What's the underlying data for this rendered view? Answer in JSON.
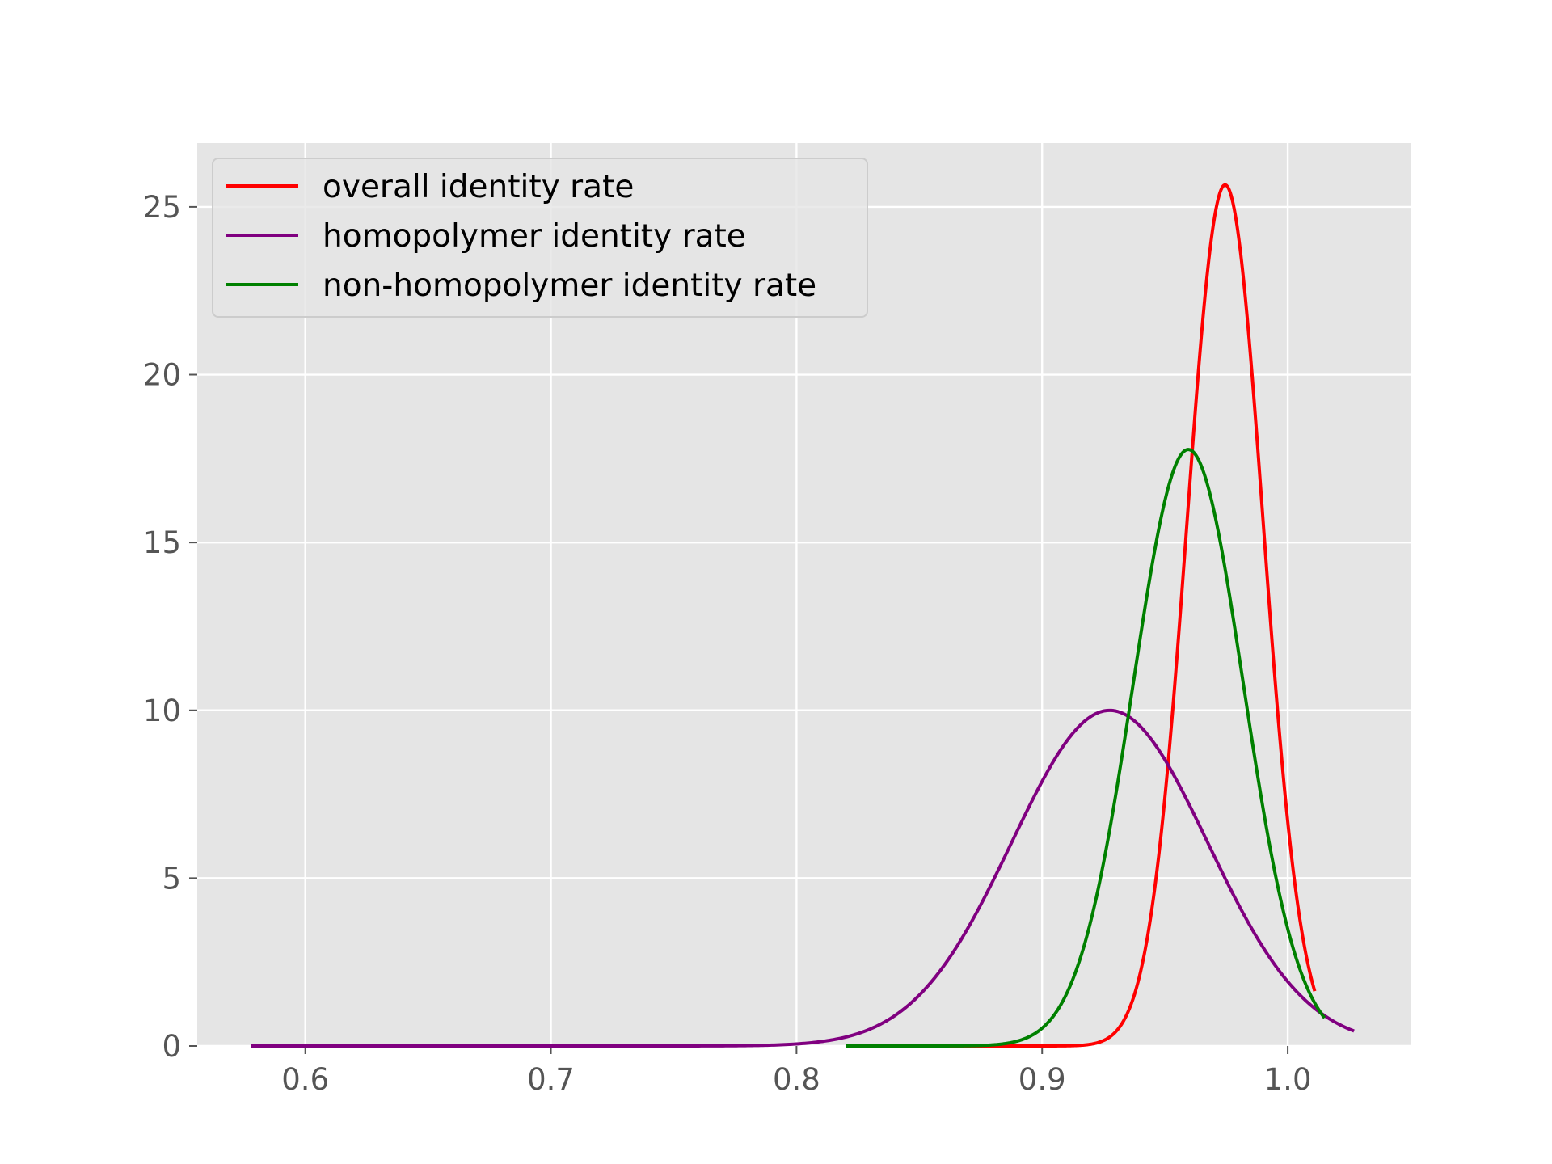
{
  "chart_data": {
    "type": "line",
    "title": "",
    "xlabel": "",
    "ylabel": "",
    "xlim": [
      0.556,
      1.05
    ],
    "ylim": [
      0,
      26.9
    ],
    "xticks": [
      0.6,
      0.7,
      0.8,
      0.9,
      1.0
    ],
    "xtick_labels": [
      "0.6",
      "0.7",
      "0.8",
      "0.9",
      "1.0"
    ],
    "yticks": [
      0,
      5,
      10,
      15,
      20,
      25
    ],
    "ytick_labels": [
      "0",
      "5",
      "10",
      "15",
      "20",
      "25"
    ],
    "grid": true,
    "legend_position": "upper-left",
    "background": "#e5e5e5",
    "series": [
      {
        "name": "overall identity rate",
        "color": "#ff0000",
        "distribution": "normal",
        "mean": 0.9745,
        "std": 0.01555,
        "x_range": [
          0.82,
          1.011
        ],
        "peak_value": 25.65
      },
      {
        "name": "homopolymer identity rate",
        "color": "#800080",
        "distribution": "normal",
        "mean": 0.9275,
        "std": 0.0399,
        "x_range": [
          0.578,
          1.027
        ],
        "peak_value": 10.0
      },
      {
        "name": "non-homopolymer identity rate",
        "color": "#008000",
        "distribution": "normal",
        "mean": 0.9595,
        "std": 0.02245,
        "x_range": [
          0.82,
          1.015
        ],
        "peak_value": 17.77
      }
    ]
  }
}
